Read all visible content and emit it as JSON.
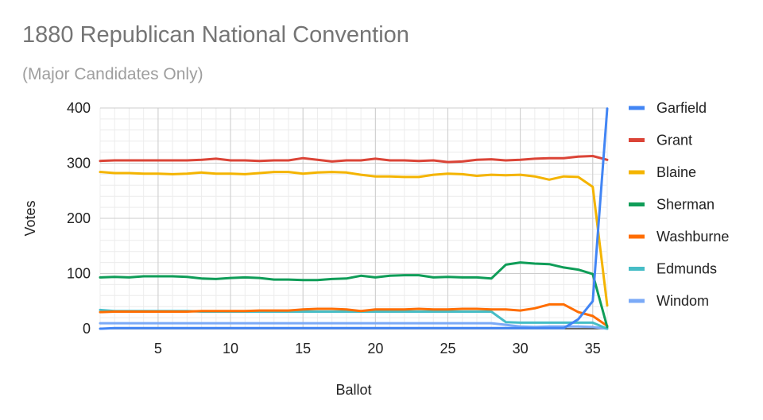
{
  "chart_data": {
    "type": "line",
    "title": "1880 Republican National Convention",
    "subtitle": "(Major Candidates Only)",
    "xlabel": "Ballot",
    "ylabel": "Votes",
    "xlim": [
      1,
      36
    ],
    "ylim": [
      0,
      400
    ],
    "xticks": [
      5,
      10,
      15,
      20,
      25,
      30,
      35
    ],
    "yticks": [
      0,
      100,
      200,
      300,
      400
    ],
    "grid": true,
    "legend_position": "right",
    "x": [
      1,
      2,
      3,
      4,
      5,
      6,
      7,
      8,
      9,
      10,
      11,
      12,
      13,
      14,
      15,
      16,
      17,
      18,
      19,
      20,
      21,
      22,
      23,
      24,
      25,
      26,
      27,
      28,
      29,
      30,
      31,
      32,
      33,
      34,
      35,
      36
    ],
    "series": [
      {
        "name": "Garfield",
        "color": "#4285f4",
        "values": [
          0,
          1,
          1,
          1,
          1,
          1,
          1,
          1,
          1,
          1,
          1,
          1,
          1,
          1,
          1,
          1,
          1,
          1,
          1,
          1,
          1,
          1,
          1,
          1,
          1,
          1,
          1,
          1,
          1,
          1,
          1,
          1,
          1,
          17,
          50,
          399
        ]
      },
      {
        "name": "Grant",
        "color": "#db4437",
        "values": [
          304,
          305,
          305,
          305,
          305,
          305,
          305,
          306,
          308,
          305,
          305,
          304,
          305,
          305,
          309,
          306,
          303,
          305,
          305,
          308,
          305,
          305,
          304,
          305,
          302,
          303,
          306,
          307,
          305,
          306,
          308,
          309,
          309,
          312,
          313,
          306
        ]
      },
      {
        "name": "Blaine",
        "color": "#f4b400",
        "values": [
          284,
          282,
          282,
          281,
          281,
          280,
          281,
          283,
          281,
          281,
          280,
          282,
          284,
          284,
          281,
          283,
          284,
          283,
          279,
          276,
          276,
          275,
          275,
          279,
          281,
          280,
          277,
          279,
          278,
          279,
          276,
          270,
          276,
          275,
          257,
          42
        ]
      },
      {
        "name": "Sherman",
        "color": "#0f9d58",
        "values": [
          93,
          94,
          93,
          95,
          95,
          95,
          94,
          91,
          90,
          92,
          93,
          92,
          89,
          89,
          88,
          88,
          90,
          91,
          96,
          93,
          96,
          97,
          97,
          93,
          94,
          93,
          93,
          91,
          116,
          120,
          118,
          117,
          111,
          107,
          99,
          3
        ]
      },
      {
        "name": "Washburne",
        "color": "#ff6d00",
        "values": [
          30,
          31,
          31,
          31,
          31,
          31,
          31,
          32,
          32,
          32,
          32,
          33,
          33,
          33,
          35,
          36,
          36,
          35,
          32,
          35,
          35,
          35,
          36,
          35,
          35,
          36,
          36,
          35,
          35,
          33,
          37,
          44,
          44,
          30,
          23,
          5
        ]
      },
      {
        "name": "Edmunds",
        "color": "#46bdc6",
        "values": [
          34,
          32,
          32,
          32,
          32,
          32,
          32,
          31,
          31,
          31,
          31,
          31,
          31,
          31,
          31,
          31,
          31,
          31,
          31,
          31,
          31,
          31,
          31,
          31,
          31,
          31,
          31,
          31,
          12,
          11,
          11,
          11,
          11,
          11,
          11,
          0
        ]
      },
      {
        "name": "Windom",
        "color": "#7baaf7",
        "values": [
          10,
          10,
          10,
          10,
          10,
          10,
          10,
          10,
          10,
          10,
          10,
          10,
          10,
          10,
          10,
          10,
          10,
          10,
          10,
          10,
          10,
          10,
          10,
          10,
          10,
          10,
          10,
          10,
          7,
          4,
          3,
          4,
          4,
          4,
          3,
          0
        ]
      }
    ]
  }
}
